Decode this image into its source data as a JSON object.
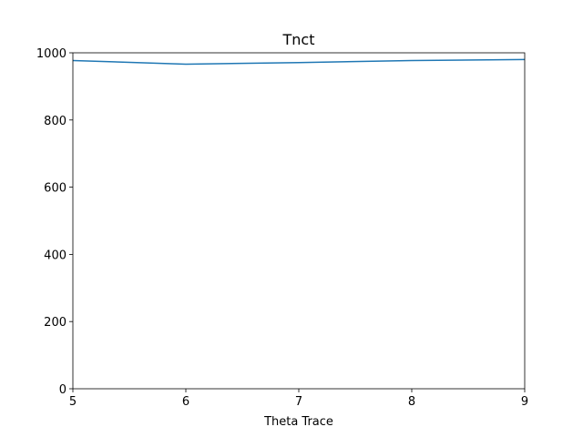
{
  "chart_data": {
    "type": "line",
    "title": "Tnct",
    "xlabel": "Theta Trace",
    "ylabel": "",
    "xlim": [
      5,
      9
    ],
    "ylim": [
      0,
      1000
    ],
    "x_ticks": [
      "5",
      "6",
      "7",
      "8",
      "9"
    ],
    "y_ticks": [
      "0",
      "200",
      "400",
      "600",
      "800",
      "1000"
    ],
    "grid": false,
    "series": [
      {
        "color": "#1f77b4",
        "x": [
          5,
          6,
          7,
          8,
          9
        ],
        "y": [
          977,
          966,
          971,
          977,
          980
        ]
      }
    ]
  }
}
